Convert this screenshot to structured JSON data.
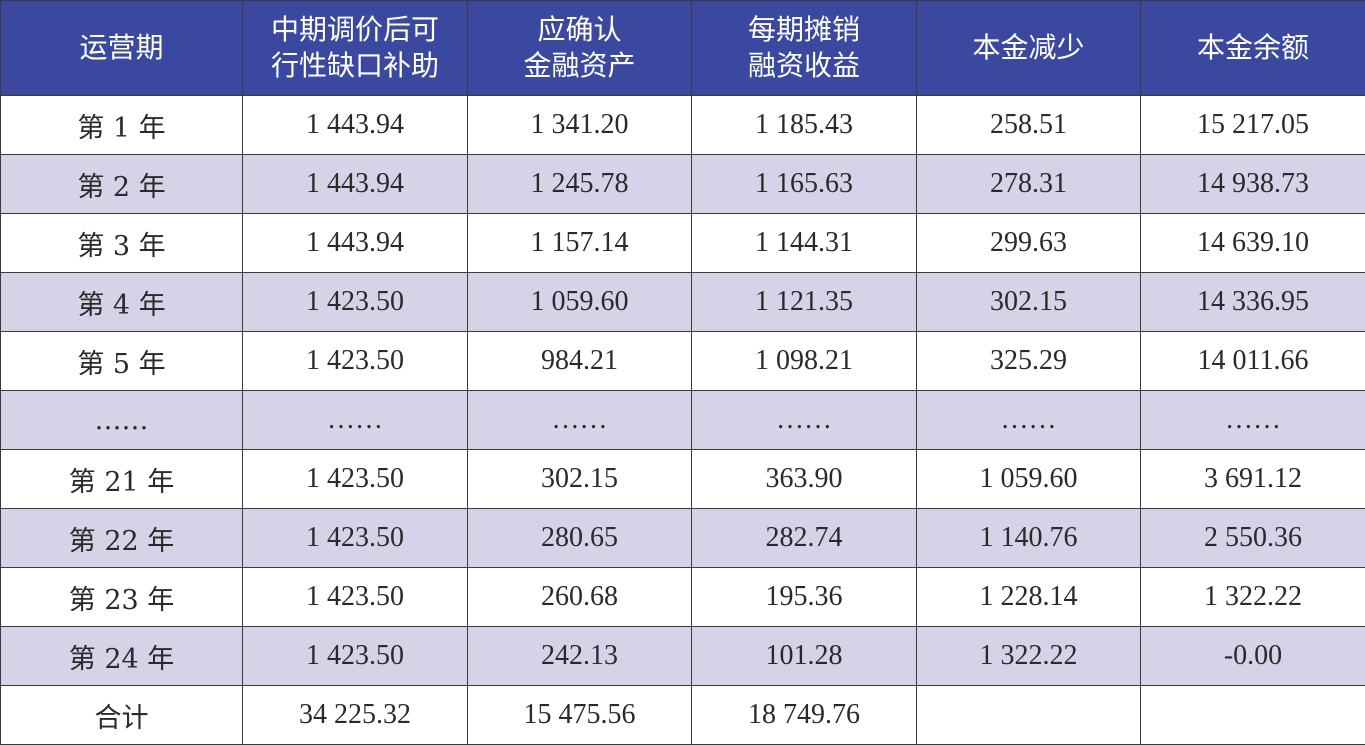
{
  "headers": [
    {
      "lines": [
        "运营期"
      ]
    },
    {
      "lines": [
        "中期调价后可",
        "行性缺口补助"
      ]
    },
    {
      "lines": [
        "应确认",
        "金融资产"
      ]
    },
    {
      "lines": [
        "每期摊销",
        "融资收益"
      ]
    },
    {
      "lines": [
        "本金减少"
      ]
    },
    {
      "lines": [
        "本金余额"
      ]
    }
  ],
  "rows": [
    [
      "第 1 年",
      "1 443.94",
      "1 341.20",
      "1 185.43",
      "258.51",
      "15 217.05"
    ],
    [
      "第 2 年",
      "1 443.94",
      "1 245.78",
      "1 165.63",
      "278.31",
      "14 938.73"
    ],
    [
      "第 3 年",
      "1 443.94",
      "1 157.14",
      "1 144.31",
      "299.63",
      "14 639.10"
    ],
    [
      "第 4 年",
      "1 423.50",
      "1 059.60",
      "1 121.35",
      "302.15",
      "14 336.95"
    ],
    [
      "第 5 年",
      "1 423.50",
      "984.21",
      "1 098.21",
      "325.29",
      "14 011.66"
    ],
    [
      "……",
      "……",
      "……",
      "……",
      "……",
      "……"
    ],
    [
      "第 21 年",
      "1 423.50",
      "302.15",
      "363.90",
      "1 059.60",
      "3 691.12"
    ],
    [
      "第 22 年",
      "1 423.50",
      "280.65",
      "282.74",
      "1 140.76",
      "2 550.36"
    ],
    [
      "第 23 年",
      "1 423.50",
      "260.68",
      "195.36",
      "1 228.14",
      "1 322.22"
    ],
    [
      "第 24 年",
      "1 423.50",
      "242.13",
      "101.28",
      "1 322.22",
      "-0.00"
    ],
    [
      "合计",
      "34 225.32",
      "15 475.56",
      "18 749.76",
      "",
      ""
    ]
  ],
  "colors": {
    "header_bg": "#3b48a0",
    "header_text": "#ffffff",
    "stripe_bg": "#d6d2e8",
    "row_bg": "#ffffff",
    "border": "#3a3a3a"
  }
}
